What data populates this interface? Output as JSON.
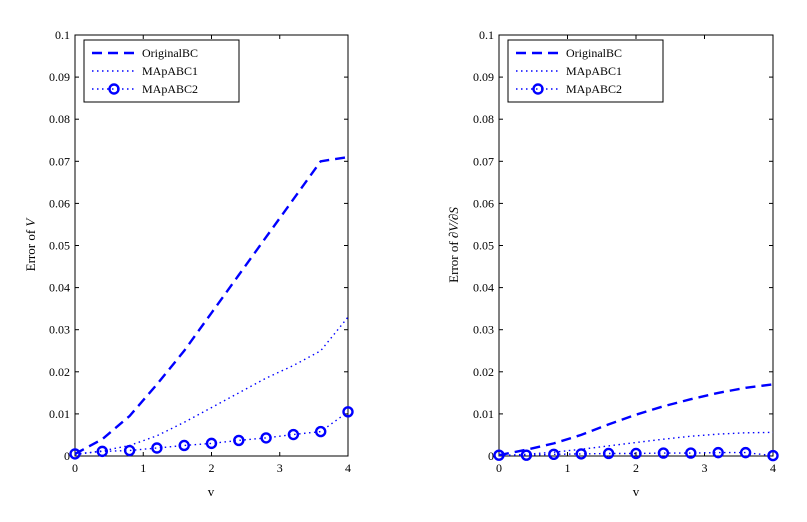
{
  "chart_data": [
    {
      "type": "line",
      "title": "",
      "xlabel": "v",
      "ylabel": "Error of ",
      "ylabel_symbol": "V",
      "xlim": [
        0,
        4
      ],
      "ylim": [
        0,
        0.1
      ],
      "xticks": [
        "0",
        "1",
        "2",
        "3",
        "4"
      ],
      "yticks": [
        "0",
        "0.01",
        "0.02",
        "0.03",
        "0.04",
        "0.05",
        "0.06",
        "0.07",
        "0.08",
        "0.09",
        "0.1"
      ],
      "legend_position": "top-left",
      "grid": false,
      "x": [
        0,
        0.4,
        0.8,
        1.2,
        1.6,
        2.0,
        2.4,
        2.8,
        3.2,
        3.6,
        4.0
      ],
      "series": [
        {
          "name": "OriginalBC",
          "style": "dashed",
          "values": [
            0.0005,
            0.004,
            0.0095,
            0.017,
            0.025,
            0.034,
            0.043,
            0.052,
            0.061,
            0.07,
            0.071
          ]
        },
        {
          "name": "MApABC1",
          "style": "dotted",
          "values": [
            0.0003,
            0.0012,
            0.0025,
            0.0048,
            0.008,
            0.0115,
            0.015,
            0.0185,
            0.0215,
            0.025,
            0.033
          ]
        },
        {
          "name": "MApABC2",
          "style": "circles",
          "values": [
            0.0005,
            0.0011,
            0.0013,
            0.0019,
            0.0025,
            0.003,
            0.0037,
            0.0043,
            0.0051,
            0.0058,
            0.0105
          ]
        }
      ]
    },
    {
      "type": "line",
      "title": "",
      "xlabel": "v",
      "ylabel": "Error of ",
      "ylabel_symbol": "∂V/∂S",
      "xlim": [
        0,
        4
      ],
      "ylim": [
        0,
        0.1
      ],
      "xticks": [
        "0",
        "1",
        "2",
        "3",
        "4"
      ],
      "yticks": [
        "0",
        "0.01",
        "0.02",
        "0.03",
        "0.04",
        "0.05",
        "0.06",
        "0.07",
        "0.08",
        "0.09",
        "0.1"
      ],
      "legend_position": "top-left",
      "grid": false,
      "x": [
        0,
        0.4,
        0.8,
        1.2,
        1.6,
        2.0,
        2.4,
        2.8,
        3.2,
        3.6,
        4.0
      ],
      "series": [
        {
          "name": "OriginalBC",
          "style": "dashed",
          "values": [
            0.0002,
            0.0015,
            0.003,
            0.005,
            0.0075,
            0.0098,
            0.0118,
            0.0135,
            0.015,
            0.0162,
            0.017
          ]
        },
        {
          "name": "MApABC1",
          "style": "dotted",
          "values": [
            0.0001,
            0.0004,
            0.0009,
            0.0016,
            0.0024,
            0.0032,
            0.004,
            0.0047,
            0.0052,
            0.0055,
            0.0056
          ]
        },
        {
          "name": "MApABC2",
          "style": "circles",
          "values": [
            0.0002,
            0.0002,
            0.0004,
            0.0005,
            0.0006,
            0.0006,
            0.0007,
            0.0007,
            0.0008,
            0.0008,
            0.0001
          ]
        }
      ]
    }
  ],
  "colors": {
    "line": "#0000ff",
    "axis": "#000000",
    "background": "#ffffff"
  }
}
